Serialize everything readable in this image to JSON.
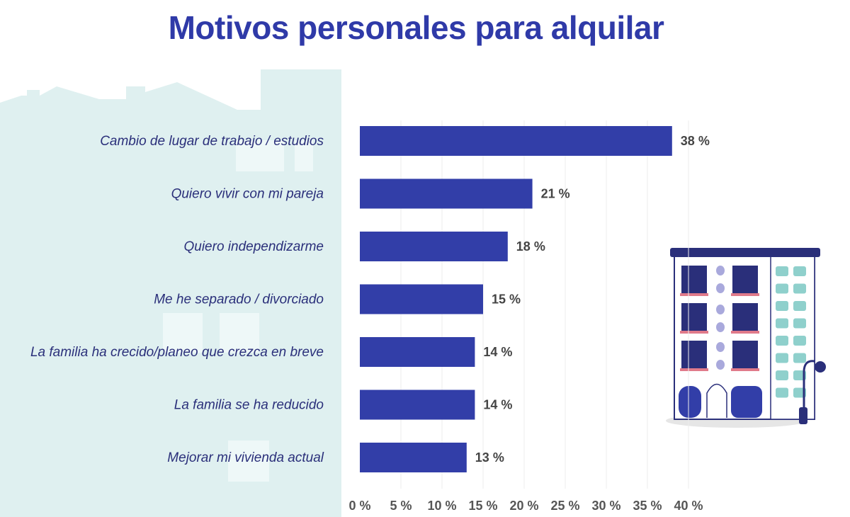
{
  "chart_data": {
    "type": "bar",
    "orientation": "horizontal",
    "title": "Motivos personales para alquilar",
    "categories": [
      "Cambio de lugar de trabajo / estudios",
      "Quiero vivir con mi pareja",
      "Quiero independizarme",
      "Me he separado / divorciado",
      "La familia ha crecido/planeo que crezca en breve",
      "La familia se ha reducido",
      "Mejorar mi vivienda actual"
    ],
    "values": [
      38,
      21,
      18,
      15,
      14,
      14,
      13
    ],
    "value_labels": [
      "38 %",
      "21 %",
      "18 %",
      "15 %",
      "14 %",
      "14 %",
      "13 %"
    ],
    "xlim": [
      0,
      40
    ],
    "x_ticks": [
      "0 %",
      "5 %",
      "10 %",
      "15 %",
      "20 %",
      "25 %",
      "30 %",
      "35 %",
      "40 %"
    ],
    "grid": true,
    "bar_color": "#323ea8",
    "title_color": "#2f3aa8",
    "label_color": "#2a2f7a",
    "panel_color": "#dff0f0"
  }
}
